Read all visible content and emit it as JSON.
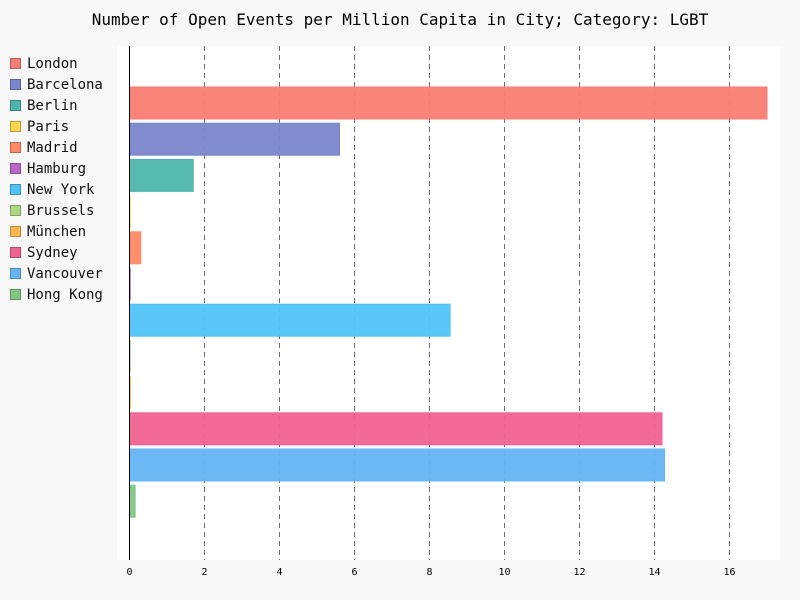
{
  "chart_data": {
    "type": "bar",
    "orientation": "horizontal",
    "title": "Number of Open Events per Million Capita in City; Category: LGBT",
    "xlabel": "",
    "ylabel": "",
    "xlim": [
      0,
      17.5
    ],
    "xticks": [
      0,
      2,
      4,
      6,
      8,
      10,
      12,
      14,
      16
    ],
    "grid": "vertical dashed",
    "legend_position": "left",
    "series": [
      {
        "name": "London",
        "value": 17.0,
        "color": "#F87C71"
      },
      {
        "name": "Barcelona",
        "value": 5.6,
        "color": "#7986CB"
      },
      {
        "name": "Berlin",
        "value": 1.7,
        "color": "#4DB6AC"
      },
      {
        "name": "Paris",
        "value": 0.02,
        "color": "#FFD54F"
      },
      {
        "name": "Madrid",
        "value": 0.3,
        "color": "#FF8A65"
      },
      {
        "name": "Hamburg",
        "value": 0.02,
        "color": "#BA68C8"
      },
      {
        "name": "New York",
        "value": 8.55,
        "color": "#4FC3F7"
      },
      {
        "name": "Brussels",
        "value": 0.02,
        "color": "#AED581"
      },
      {
        "name": "München",
        "value": 0.02,
        "color": "#FFB74D"
      },
      {
        "name": "Sydney",
        "value": 14.2,
        "color": "#F06292"
      },
      {
        "name": "Vancouver",
        "value": 14.27,
        "color": "#64B5F6"
      },
      {
        "name": "Hong Kong",
        "value": 0.15,
        "color": "#81C784"
      }
    ]
  }
}
